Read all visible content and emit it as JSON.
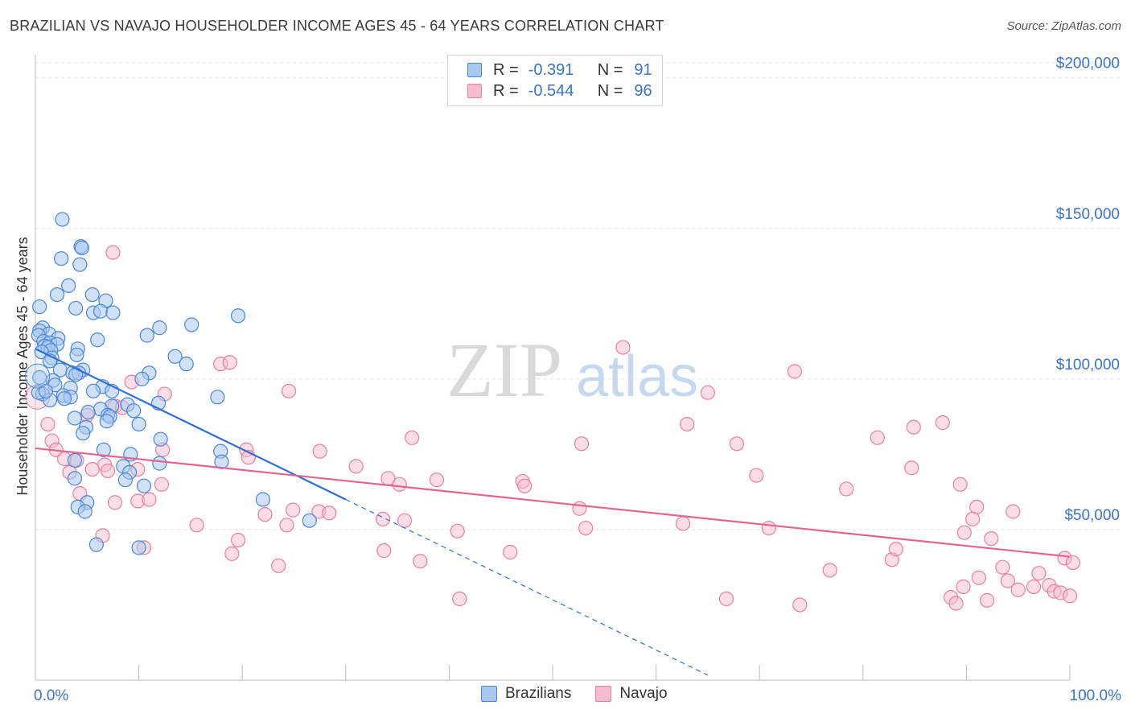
{
  "header": {
    "title": "BRAZILIAN VS NAVAJO HOUSEHOLDER INCOME AGES 45 - 64 YEARS CORRELATION CHART",
    "source": "Source: ZipAtlas.com"
  },
  "watermark": {
    "zip": "ZIP",
    "atlas": "atlas"
  },
  "legend": {
    "rows": [
      {
        "r_label": "R =",
        "r_value": "-0.391",
        "n_label": "N =",
        "n_value": "91"
      },
      {
        "r_label": "R =",
        "r_value": "-0.544",
        "n_label": "N =",
        "n_value": "96"
      }
    ]
  },
  "bottom_legend": {
    "series1": "Brazilians",
    "series2": "Navajo"
  },
  "colors": {
    "blue_fill": "#a9c8ef",
    "blue_stroke": "#4a86d6",
    "blue_line": "#2f6fd0",
    "pink_fill": "#f6bccd",
    "pink_stroke": "#e77fa1",
    "pink_line": "#e3658f",
    "axis_label": "#3a73c8",
    "grid": "#e4e4e4"
  },
  "chart_data": {
    "type": "scatter",
    "title": "BRAZILIAN VS NAVAJO HOUSEHOLDER INCOME AGES 45 - 64 YEARS CORRELATION CHART",
    "xlabel": "",
    "ylabel": "Householder Income Ages 45 - 64 years",
    "xlim": [
      0,
      100
    ],
    "ylim": [
      0,
      205000
    ],
    "x_tick_labels": [
      "0.0%",
      "100.0%"
    ],
    "y_ticks": [
      50000,
      100000,
      150000,
      200000
    ],
    "y_tick_labels": [
      "$50,000",
      "$100,000",
      "$150,000",
      "$200,000"
    ],
    "grid": true,
    "legend_position": "top-center",
    "series": [
      {
        "name": "Brazilians",
        "r": -0.391,
        "n": 91,
        "trend": {
          "x0": 0,
          "y0": 110000,
          "x1": 30,
          "y1": 60000,
          "dashed_to_x": 65
        },
        "points": [
          [
            2.6,
            153000
          ],
          [
            4.4,
            144000
          ],
          [
            4.5,
            143500
          ],
          [
            2.5,
            140000
          ],
          [
            4.3,
            138000
          ],
          [
            3.2,
            131000
          ],
          [
            2.1,
            128000
          ],
          [
            5.5,
            128000
          ],
          [
            6.8,
            126000
          ],
          [
            0.4,
            124000
          ],
          [
            3.9,
            123500
          ],
          [
            5.6,
            122000
          ],
          [
            6.3,
            122500
          ],
          [
            7.5,
            122000
          ],
          [
            19.6,
            121000
          ],
          [
            15.1,
            118000
          ],
          [
            12.0,
            117000
          ],
          [
            0.7,
            117000
          ],
          [
            0.4,
            116000
          ],
          [
            1.3,
            115000
          ],
          [
            0.3,
            114500
          ],
          [
            10.8,
            114500
          ],
          [
            2.2,
            113500
          ],
          [
            6.0,
            113000
          ],
          [
            0.8,
            112500
          ],
          [
            1.4,
            112000
          ],
          [
            2.1,
            111500
          ],
          [
            0.9,
            111000
          ],
          [
            1.2,
            110500
          ],
          [
            4.1,
            110000
          ],
          [
            1.5,
            109500
          ],
          [
            0.6,
            109000
          ],
          [
            4.0,
            108000
          ],
          [
            1.6,
            107000
          ],
          [
            13.5,
            107500
          ],
          [
            1.4,
            106000
          ],
          [
            14.6,
            105000
          ],
          [
            11.0,
            102000
          ],
          [
            2.4,
            103000
          ],
          [
            4.6,
            103000
          ],
          [
            3.6,
            102000
          ],
          [
            4.2,
            102000
          ],
          [
            3.9,
            101500
          ],
          [
            10.3,
            100000
          ],
          [
            0.4,
            100500
          ],
          [
            1.7,
            99500
          ],
          [
            1.9,
            98000
          ],
          [
            6.5,
            97500
          ],
          [
            3.4,
            97000
          ],
          [
            5.6,
            96000
          ],
          [
            7.4,
            96000
          ],
          [
            0.7,
            95000
          ],
          [
            2.7,
            94500
          ],
          [
            3.4,
            94000
          ],
          [
            2.8,
            93500
          ],
          [
            1.4,
            93000
          ],
          [
            17.6,
            94000
          ],
          [
            11.9,
            92000
          ],
          [
            7.4,
            91000
          ],
          [
            8.9,
            91500
          ],
          [
            6.3,
            90000
          ],
          [
            9.5,
            89500
          ],
          [
            5.1,
            89000
          ],
          [
            7.0,
            88000
          ],
          [
            3.8,
            87000
          ],
          [
            7.2,
            87500
          ],
          [
            4.9,
            84000
          ],
          [
            6.9,
            86000
          ],
          [
            10.0,
            85000
          ],
          [
            4.6,
            82000
          ],
          [
            12.1,
            80000
          ],
          [
            17.9,
            76000
          ],
          [
            6.6,
            76500
          ],
          [
            9.2,
            75000
          ],
          [
            3.8,
            73000
          ],
          [
            18.0,
            72500
          ],
          [
            12.0,
            72000
          ],
          [
            8.5,
            71000
          ],
          [
            9.1,
            69000
          ],
          [
            3.8,
            67000
          ],
          [
            8.7,
            66500
          ],
          [
            10.5,
            64500
          ],
          [
            22.0,
            60000
          ],
          [
            5.0,
            59000
          ],
          [
            4.1,
            57500
          ],
          [
            4.8,
            56000
          ],
          [
            26.5,
            53000
          ],
          [
            5.9,
            45000
          ],
          [
            10.0,
            44000
          ],
          [
            0.3,
            95500
          ],
          [
            1.0,
            96000
          ]
        ]
      },
      {
        "name": "Navajo",
        "r": -0.544,
        "n": 96,
        "trend": {
          "x0": 0,
          "y0": 77000,
          "x1": 100,
          "y1": 41000
        },
        "points": [
          [
            7.5,
            142000
          ],
          [
            56.8,
            110500
          ],
          [
            17.9,
            105000
          ],
          [
            18.8,
            105500
          ],
          [
            73.4,
            102500
          ],
          [
            9.3,
            99000
          ],
          [
            12.5,
            95000
          ],
          [
            24.5,
            96000
          ],
          [
            65.0,
            95500
          ],
          [
            7.7,
            91000
          ],
          [
            8.4,
            90500
          ],
          [
            5.0,
            88000
          ],
          [
            1.2,
            85000
          ],
          [
            63.0,
            85000
          ],
          [
            84.9,
            84000
          ],
          [
            87.7,
            85500
          ],
          [
            36.4,
            80500
          ],
          [
            52.8,
            78500
          ],
          [
            67.8,
            78500
          ],
          [
            81.4,
            80500
          ],
          [
            1.6,
            79500
          ],
          [
            2.0,
            76500
          ],
          [
            12.3,
            76500
          ],
          [
            20.4,
            76500
          ],
          [
            27.5,
            76000
          ],
          [
            2.8,
            73500
          ],
          [
            20.6,
            74000
          ],
          [
            4.0,
            73000
          ],
          [
            31.0,
            71000
          ],
          [
            6.7,
            71500
          ],
          [
            9.9,
            70000
          ],
          [
            5.5,
            70000
          ],
          [
            7.0,
            69500
          ],
          [
            3.3,
            69000
          ],
          [
            69.7,
            68000
          ],
          [
            84.7,
            70500
          ],
          [
            34.1,
            67000
          ],
          [
            38.8,
            66500
          ],
          [
            47.1,
            66000
          ],
          [
            35.2,
            65000
          ],
          [
            47.3,
            64500
          ],
          [
            12.2,
            65000
          ],
          [
            89.4,
            65000
          ],
          [
            78.4,
            63500
          ],
          [
            4.3,
            62000
          ],
          [
            9.9,
            59500
          ],
          [
            11.0,
            60000
          ],
          [
            7.7,
            59000
          ],
          [
            52.6,
            57000
          ],
          [
            91.0,
            57500
          ],
          [
            94.5,
            56000
          ],
          [
            22.2,
            55000
          ],
          [
            24.9,
            56500
          ],
          [
            27.4,
            56000
          ],
          [
            28.4,
            55500
          ],
          [
            33.6,
            53500
          ],
          [
            35.7,
            53000
          ],
          [
            62.6,
            52000
          ],
          [
            40.8,
            49500
          ],
          [
            53.2,
            50500
          ],
          [
            70.9,
            50500
          ],
          [
            89.8,
            49000
          ],
          [
            90.6,
            53500
          ],
          [
            92.4,
            47000
          ],
          [
            15.6,
            51500
          ],
          [
            24.3,
            51500
          ],
          [
            19.6,
            46500
          ],
          [
            6.5,
            48000
          ],
          [
            10.5,
            44000
          ],
          [
            19.0,
            42000
          ],
          [
            45.9,
            42500
          ],
          [
            37.2,
            39500
          ],
          [
            33.7,
            43000
          ],
          [
            76.8,
            36500
          ],
          [
            82.8,
            40000
          ],
          [
            83.2,
            43500
          ],
          [
            93.5,
            37500
          ],
          [
            99.5,
            40500
          ],
          [
            100.3,
            39000
          ],
          [
            23.5,
            38000
          ],
          [
            89.7,
            31000
          ],
          [
            91.2,
            34000
          ],
          [
            94.0,
            33000
          ],
          [
            95.0,
            30000
          ],
          [
            96.5,
            31000
          ],
          [
            97.0,
            35500
          ],
          [
            98.0,
            31500
          ],
          [
            98.5,
            29500
          ],
          [
            99.1,
            29000
          ],
          [
            100.0,
            28000
          ],
          [
            41.0,
            27000
          ],
          [
            66.8,
            27000
          ],
          [
            73.9,
            25000
          ],
          [
            88.5,
            27500
          ],
          [
            89.0,
            25500
          ],
          [
            92.0,
            26500
          ]
        ]
      }
    ]
  }
}
